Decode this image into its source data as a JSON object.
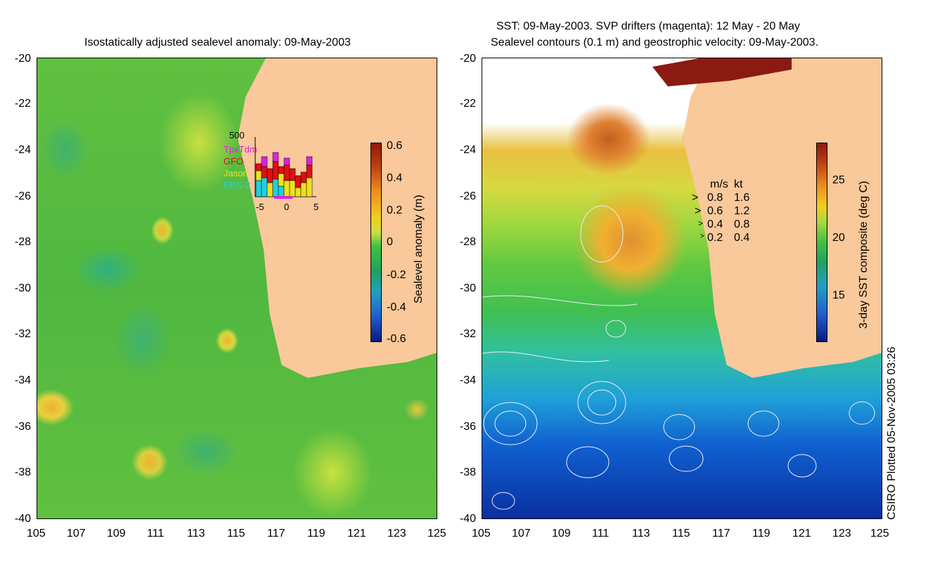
{
  "left_panel": {
    "title": "Isostatically adjusted sealevel anomaly: 09-May-2003",
    "colorbar": {
      "label": "Sealevel anomaly (m)",
      "ticks": [
        "0.6",
        "0.4",
        "0.2",
        "0",
        "-0.2",
        "-0.4",
        "-0.6"
      ]
    },
    "inset": {
      "ymax_label": "500",
      "legend": [
        {
          "name": "TpxTdm",
          "color": "#e020e0"
        },
        {
          "name": "GFO",
          "color": "#e01010"
        },
        {
          "name": "Jason",
          "color": "#f0e020"
        },
        {
          "name": "ERS-2",
          "color": "#20d0e0"
        }
      ],
      "xticks": [
        "-5",
        "0",
        "5"
      ]
    }
  },
  "right_panel": {
    "title_line1": "SST: 09-May-2003. SVP drifters (magenta): 12 May - 20 May",
    "title_line2": "Sealevel contours (0.1 m) and geostrophic velocity: 09-May-2003.",
    "colorbar": {
      "label": "3-day SST composite (deg C)",
      "ticks": [
        "25",
        "20",
        "15"
      ]
    },
    "velocity_key": {
      "header_ms": "m/s",
      "header_kt": "kt",
      "rows": [
        {
          "ms": "0.8",
          "kt": "1.6"
        },
        {
          "ms": "0.6",
          "kt": "1.2"
        },
        {
          "ms": "0.4",
          "kt": "0.8"
        },
        {
          "ms": "0.2",
          "kt": "0.4"
        }
      ]
    }
  },
  "axes": {
    "y_ticks": [
      "-20",
      "-22",
      "-24",
      "-26",
      "-28",
      "-30",
      "-32",
      "-34",
      "-36",
      "-38",
      "-40"
    ],
    "x_ticks": [
      "105",
      "107",
      "109",
      "111",
      "113",
      "115",
      "117",
      "119",
      "121",
      "123",
      "125"
    ]
  },
  "credit": "CSIRO Plotted 05-Nov-2005 03:26"
}
